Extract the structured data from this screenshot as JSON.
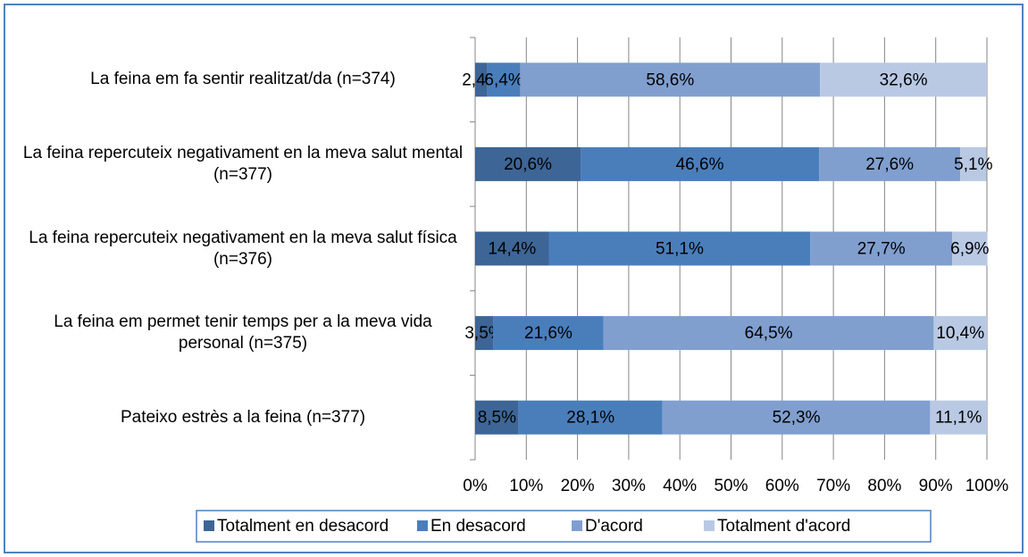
{
  "chart_data": {
    "type": "stacked-bar-horizontal",
    "categories": [
      "La feina em fa sentir realitzat/da (n=374)",
      "La feina repercuteix negativament en la meva salut mental (n=377)",
      "La feina repercuteix negativament en la meva salut física (n=376)",
      "La feina em permet tenir temps per a la meva vida personal (n=375)",
      "Pateixo estrès a la feina (n=377)"
    ],
    "series": [
      {
        "name": "Totalment en desacord",
        "color": "#3d6596",
        "values": [
          2.4,
          20.6,
          14.4,
          3.5,
          8.5
        ],
        "value_labels": [
          "2,4%",
          "20,6%",
          "14,4%",
          "3,5%",
          "8,5%"
        ]
      },
      {
        "name": "En desacord",
        "color": "#4a7ebb",
        "values": [
          6.4,
          46.6,
          51.1,
          21.6,
          28.1
        ],
        "value_labels": [
          "6,4%",
          "46,6%",
          "51,1%",
          "21,6%",
          "28,1%"
        ]
      },
      {
        "name": "D'acord",
        "color": "#809fcf",
        "values": [
          58.6,
          27.6,
          27.7,
          64.5,
          52.3
        ],
        "value_labels": [
          "58,6%",
          "27,6%",
          "27,7%",
          "64,5%",
          "52,3%"
        ]
      },
      {
        "name": "Totalment d'acord",
        "color": "#b9c9e4",
        "values": [
          32.6,
          5.1,
          6.9,
          10.4,
          11.1
        ],
        "value_labels": [
          "32,6%",
          "5,1%",
          "6,9%",
          "10,4%",
          "11,1%"
        ]
      }
    ],
    "xlim": [
      0,
      100
    ],
    "xticks": [
      {
        "value": 0,
        "label": "0%"
      },
      {
        "value": 10,
        "label": "10%"
      },
      {
        "value": 20,
        "label": "20%"
      },
      {
        "value": 30,
        "label": "30%"
      },
      {
        "value": 40,
        "label": "40%"
      },
      {
        "value": 50,
        "label": "50%"
      },
      {
        "value": 60,
        "label": "60%"
      },
      {
        "value": 70,
        "label": "70%"
      },
      {
        "value": 80,
        "label": "80%"
      },
      {
        "value": 90,
        "label": "90%"
      },
      {
        "value": 100,
        "label": "100%"
      }
    ],
    "grid": true,
    "legend": "bottom"
  }
}
